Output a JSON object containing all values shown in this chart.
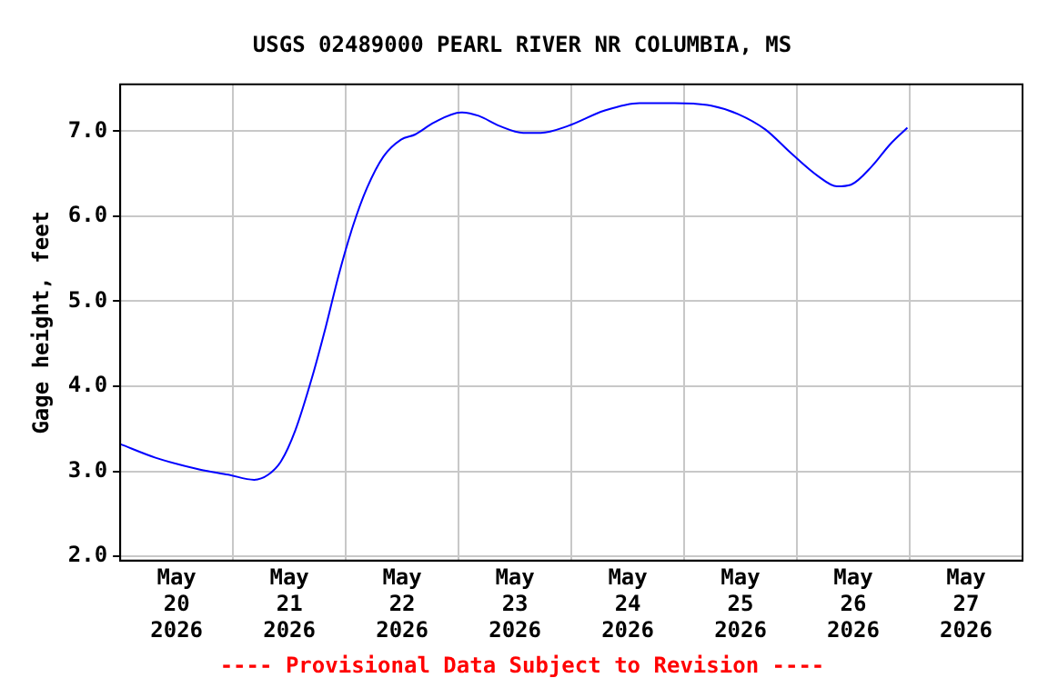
{
  "chart_data": {
    "type": "line",
    "title": "USGS 02489000 PEARL RIVER NR COLUMBIA, MS",
    "ylabel": "Gage height, feet",
    "annotations": [
      "---- Provisional Data Subject to Revision ----"
    ],
    "x": [
      "2026-05-20T00:00",
      "2026-05-20T07:30",
      "2026-05-20T17:00",
      "2026-05-20T23:00",
      "2026-05-21T04:30",
      "2026-05-21T07:30",
      "2026-05-21T10:15",
      "2026-05-21T13:15",
      "2026-05-21T16:45",
      "2026-05-21T19:45",
      "2026-05-21T22:30",
      "2026-05-22T01:30",
      "2026-05-22T04:30",
      "2026-05-22T08:00",
      "2026-05-22T11:45",
      "2026-05-22T14:45",
      "2026-05-22T18:45",
      "2026-05-23T00:30",
      "2026-05-23T04:15",
      "2026-05-23T08:45",
      "2026-05-23T13:45",
      "2026-05-23T17:30",
      "2026-05-23T23:15",
      "2026-05-24T07:00",
      "2026-05-24T14:30",
      "2026-05-24T22:00",
      "2026-05-25T05:45",
      "2026-05-25T11:30",
      "2026-05-25T17:15",
      "2026-05-25T22:45",
      "2026-05-26T04:30",
      "2026-05-26T08:30",
      "2026-05-26T11:30",
      "2026-05-26T16:00",
      "2026-05-26T19:45",
      "2026-05-26T23:30"
    ],
    "series": [
      {
        "color": "#0000ff",
        "values": [
          3.32,
          3.16,
          3.02,
          2.96,
          2.9,
          2.96,
          3.12,
          3.48,
          4.09,
          4.7,
          5.31,
          5.88,
          6.33,
          6.7,
          6.9,
          6.96,
          7.1,
          7.22,
          7.18,
          7.06,
          6.98,
          6.98,
          7.06,
          7.24,
          7.33,
          7.33,
          7.3,
          7.2,
          7.02,
          6.74,
          6.47,
          6.35,
          6.37,
          6.59,
          6.84,
          7.04
        ]
      }
    ],
    "xlim": [
      "2026-05-20T00:00",
      "2026-05-28T00:00"
    ],
    "xticks": [
      {
        "value": "2026-05-20T12:00",
        "label": "May\n20\n2026"
      },
      {
        "value": "2026-05-21T00:00",
        "label": null
      },
      {
        "value": "2026-05-21T12:00",
        "label": "May\n21\n2026"
      },
      {
        "value": "2026-05-22T00:00",
        "label": null
      },
      {
        "value": "2026-05-22T12:00",
        "label": "May\n22\n2026"
      },
      {
        "value": "2026-05-23T00:00",
        "label": null
      },
      {
        "value": "2026-05-23T12:00",
        "label": "May\n23\n2026"
      },
      {
        "value": "2026-05-24T00:00",
        "label": null
      },
      {
        "value": "2026-05-24T12:00",
        "label": "May\n24\n2026"
      },
      {
        "value": "2026-05-25T00:00",
        "label": null
      },
      {
        "value": "2026-05-25T12:00",
        "label": "May\n25\n2026"
      },
      {
        "value": "2026-05-26T00:00",
        "label": null
      },
      {
        "value": "2026-05-26T12:00",
        "label": "May\n26\n2026"
      },
      {
        "value": "2026-05-27T00:00",
        "label": null
      },
      {
        "value": "2026-05-27T12:00",
        "label": "May\n27\n2026"
      }
    ],
    "ylim": [
      1.95,
      7.55
    ],
    "yticks": [
      {
        "value": 2,
        "label": "2.0"
      },
      {
        "value": 3,
        "label": "3.0"
      },
      {
        "value": 4,
        "label": "4.0"
      },
      {
        "value": 5,
        "label": "5.0"
      },
      {
        "value": 6,
        "label": "6.0"
      },
      {
        "value": 7,
        "label": "7.0"
      }
    ],
    "grid": true,
    "legend": false,
    "marker": "none",
    "line_style": "solid"
  }
}
